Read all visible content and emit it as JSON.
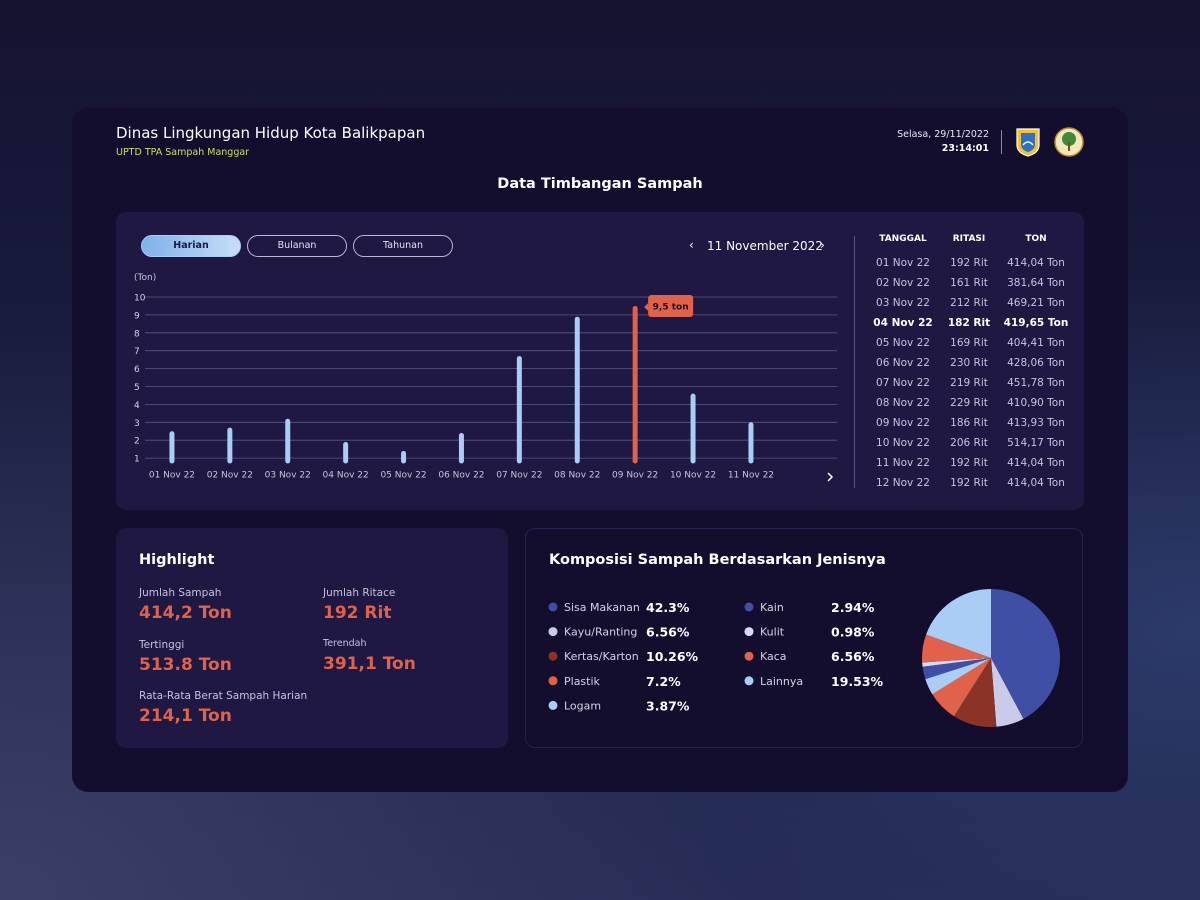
{
  "header": {
    "title": "Dinas Lingkungan Hidup Kota Balikpapan",
    "subtitle": "UPTD TPA Sampah Manggar",
    "date": "Selasa, 29/11/2022",
    "time": "23:14:01"
  },
  "page_title": "Data Timbangan Sampah",
  "tabs": [
    "Harian",
    "Bulanan",
    "Tahunan"
  ],
  "date_nav": "11 November 2022",
  "chart_data": [
    {
      "type": "bar",
      "y_label": "(Ton)",
      "categories": [
        "01 Nov 22",
        "02 Nov 22",
        "03 Nov 22",
        "04 Nov 22",
        "05 Nov 22",
        "06 Nov 22",
        "07 Nov 22",
        "08 Nov 22",
        "09 Nov 22",
        "10 Nov 22",
        "11 Nov 22"
      ],
      "values": [
        2.5,
        2.7,
        3.2,
        1.9,
        1.4,
        2.4,
        6.7,
        8.9,
        9.5,
        4.6,
        3.0
      ],
      "value_labels": [
        null,
        null,
        null,
        null,
        null,
        null,
        null,
        null,
        "9,5 ton",
        null,
        null
      ],
      "colors": [
        "#a9cdf4",
        "#a9cdf4",
        "#a9cdf4",
        "#a9cdf4",
        "#a9cdf4",
        "#a9cdf4",
        "#a9cdf4",
        "#a9cdf4",
        "#e0624a",
        "#a9cdf4",
        "#a9cdf4"
      ],
      "ylim": [
        0.7,
        10
      ],
      "yticks": [
        1,
        2,
        3,
        4,
        5,
        6,
        7,
        8,
        9,
        10
      ],
      "grid": true
    },
    {
      "type": "pie",
      "title": "Komposisi Sampah Berdasarkan Jenisnya",
      "categories": [
        "Sisa Makanan",
        "Kayu/Ranting",
        "Kertas/Karton",
        "Plastik",
        "Logam",
        "Kain",
        "Kulit",
        "Kaca",
        "Lainnya"
      ],
      "values": [
        42.3,
        6.56,
        10.26,
        7.2,
        3.87,
        2.94,
        0.98,
        6.56,
        19.53
      ],
      "value_labels": [
        "42.3%",
        "6.56%",
        "10.26%",
        "7.2%",
        "3.87%",
        "2.94%",
        "0.98%",
        "6.56%",
        "19.53%"
      ],
      "colors": [
        "#3f4fa6",
        "#c9cbe8",
        "#8a3326",
        "#e0624a",
        "#a9cdf4",
        "#3f4fa6",
        "#d9d9f1",
        "#e0624a",
        "#a9cdf4"
      ]
    }
  ],
  "table": {
    "headers": [
      "TANGGAL",
      "RITASI",
      "TON"
    ],
    "rows": [
      [
        "01 Nov 22",
        "192 Rit",
        "414,04 Ton"
      ],
      [
        "02 Nov 22",
        "161 Rit",
        "381,64 Ton"
      ],
      [
        "03 Nov 22",
        "212 Rit",
        "469,21 Ton"
      ],
      [
        "04 Nov 22",
        "182 Rit",
        "419,65 Ton"
      ],
      [
        "05 Nov 22",
        "169 Rit",
        "404,41 Ton"
      ],
      [
        "06 Nov 22",
        "230 Rit",
        "428,06 Ton"
      ],
      [
        "07 Nov 22",
        "219 Rit",
        "451,78 Ton"
      ],
      [
        "08 Nov 22",
        "229 Rit",
        "410,90 Ton"
      ],
      [
        "09 Nov 22",
        "186 Rit",
        "413,93 Ton"
      ],
      [
        "10 Nov 22",
        "206 Rit",
        "514,17 Ton"
      ],
      [
        "11 Nov 22",
        "192 Rit",
        "414,04 Ton"
      ],
      [
        "12 Nov 22",
        "192 Rit",
        "414,04 Ton"
      ]
    ]
  },
  "highlight": {
    "title": "Highlight",
    "items": [
      {
        "label": "Jumlah Sampah",
        "value": "414,2 Ton"
      },
      {
        "label": "Jumlah Ritace",
        "value": "192 Rit"
      },
      {
        "label": "Tertinggi",
        "value": "513.8 Ton"
      },
      {
        "label": "Terendah",
        "value": "391,1 Ton"
      },
      {
        "label": "Rata-Rata Berat Sampah Harian",
        "value": "214,1 Ton"
      }
    ]
  }
}
